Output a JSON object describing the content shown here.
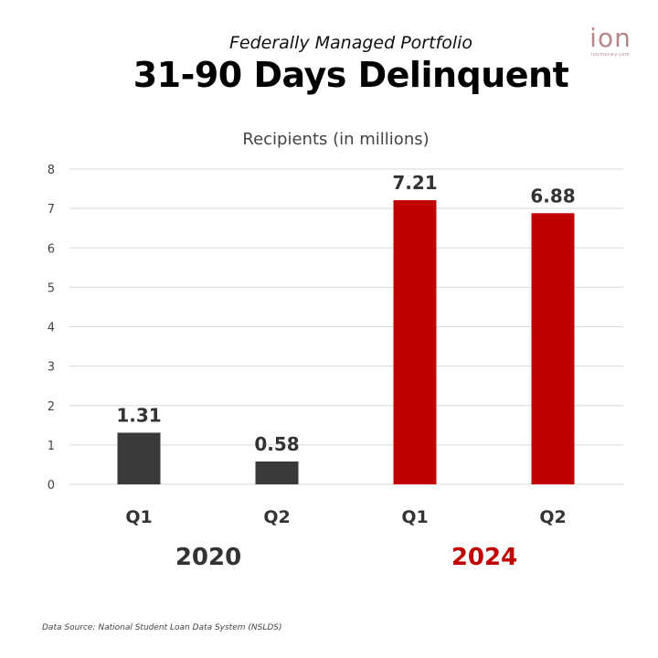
{
  "header": {
    "subtitle": "Federally Managed Portfolio",
    "title": "31-90 Days Delinquent"
  },
  "logo": {
    "mark": "ion",
    "tagline": "ionmoney.com"
  },
  "footnote": "Data Source: National Student Loan Data System (NSLDS)",
  "colors": {
    "bar_2020": "#3a3a3a",
    "bar_2024": "#c00000",
    "year_2020": "#333333",
    "year_2024": "#c00000",
    "grid": "#d9d9d9",
    "tick": "#444444"
  },
  "chart_data": {
    "type": "bar",
    "title": "31-90 Days Delinquent",
    "subtitle": "Federally Managed Portfolio",
    "ylabel": "Recipients (in millions)",
    "xlabel": "",
    "ylim": [
      0,
      8
    ],
    "yticks": [
      0,
      1,
      2,
      3,
      4,
      5,
      6,
      7,
      8
    ],
    "grid": true,
    "categories": [
      "Q1",
      "Q2",
      "Q1",
      "Q2"
    ],
    "groups": [
      "2020",
      "2020",
      "2024",
      "2024"
    ],
    "values": [
      1.31,
      0.58,
      7.21,
      6.88
    ],
    "value_labels": [
      "1.31",
      "0.58",
      "7.21",
      "6.88"
    ],
    "group_labels": [
      "2020",
      "2024"
    ]
  }
}
